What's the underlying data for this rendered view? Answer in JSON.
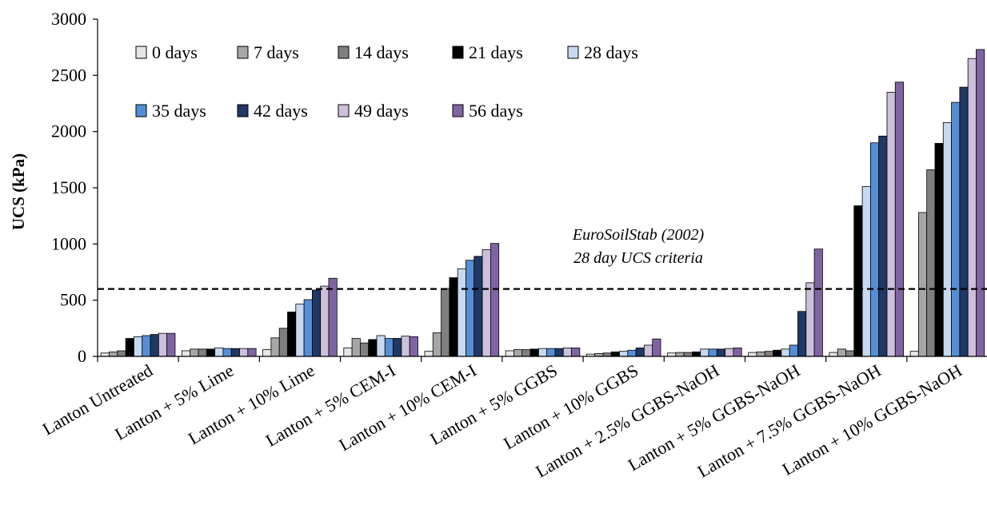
{
  "chart_data": {
    "type": "bar",
    "ylabel": "UCS (kPa)",
    "ylim": [
      0,
      3000
    ],
    "yticks": [
      "0",
      "500",
      "1000",
      "1500",
      "2000",
      "2500",
      "3000"
    ],
    "ytick_values": [
      0,
      500,
      1000,
      1500,
      2000,
      2500,
      3000
    ],
    "grid": false,
    "legend_position": "top-left",
    "categories": [
      "Lanton Untreated",
      "Lanton + 5% Lime",
      "Lanton + 10% Lime",
      "Lanton + 5% CEM-I",
      "Lanton + 10% CEM-I",
      "Lanton + 5% GGBS",
      "Lanton + 10% GGBS",
      "Lanton + 2.5% GGBS-NaOH",
      "Lanton + 5% GGBS-NaOH",
      "Lanton + 7.5% GGBS-NaOH",
      "Lanton + 10% GGBS-NaOH"
    ],
    "series": [
      {
        "name": "0 days",
        "color": "#e6e6e6",
        "values": [
          30,
          50,
          60,
          75,
          45,
          50,
          20,
          30,
          35,
          35,
          45
        ]
      },
      {
        "name": "7 days",
        "color": "#a6a6a6",
        "values": [
          40,
          65,
          165,
          160,
          210,
          60,
          25,
          35,
          40,
          65,
          1280
        ]
      },
      {
        "name": "14 days",
        "color": "#7f7f7f",
        "values": [
          50,
          65,
          250,
          120,
          605,
          60,
          30,
          35,
          45,
          50,
          1660
        ]
      },
      {
        "name": "21 days",
        "color": "#000000",
        "values": [
          160,
          65,
          395,
          150,
          700,
          65,
          40,
          40,
          55,
          1340,
          1895
        ]
      },
      {
        "name": "28 days",
        "color": "#c6d9f1",
        "values": [
          175,
          75,
          465,
          185,
          780,
          70,
          45,
          65,
          65,
          1510,
          2080
        ]
      },
      {
        "name": "35 days",
        "color": "#558ed5",
        "values": [
          185,
          70,
          505,
          160,
          855,
          70,
          55,
          65,
          100,
          1900,
          2260
        ]
      },
      {
        "name": "42 days",
        "color": "#1f3864",
        "values": [
          195,
          70,
          590,
          160,
          890,
          70,
          75,
          65,
          400,
          1960,
          2395
        ]
      },
      {
        "name": "49 days",
        "color": "#ccc0da",
        "values": [
          205,
          70,
          625,
          180,
          950,
          75,
          100,
          70,
          655,
          2350,
          2650
        ]
      },
      {
        "name": "56 days",
        "color": "#8064a2",
        "values": [
          205,
          70,
          695,
          175,
          1005,
          75,
          155,
          75,
          955,
          2440,
          2730
        ]
      }
    ],
    "reference_line": {
      "value": 600,
      "style": "dashed",
      "label_line1": "EuroSoilStab (2002)",
      "label_line2": "28 day UCS criteria"
    }
  }
}
